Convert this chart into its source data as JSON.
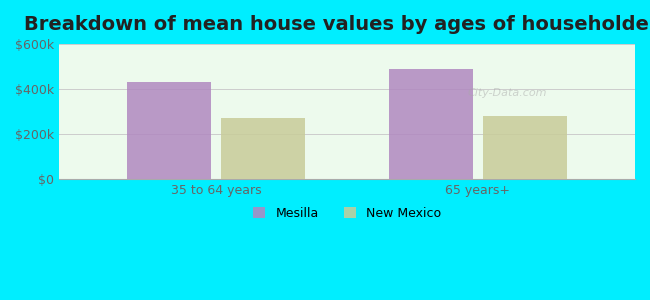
{
  "title": "Breakdown of mean house values by ages of householders",
  "categories": [
    "35 to 64 years",
    "65 years+"
  ],
  "series": {
    "Mesilla": [
      430000,
      490000
    ],
    "New Mexico": [
      270000,
      280000
    ]
  },
  "bar_colors": {
    "Mesilla": "#b088c0",
    "New Mexico": "#c8cc99"
  },
  "ylim": [
    0,
    600000
  ],
  "yticks": [
    0,
    200000,
    400000,
    600000
  ],
  "ytick_labels": [
    "$0",
    "$200k",
    "$400k",
    "$600k"
  ],
  "background_color": "#00eeff",
  "title_fontsize": 14,
  "axis_fontsize": 9,
  "legend_fontsize": 9,
  "bar_width": 0.32
}
